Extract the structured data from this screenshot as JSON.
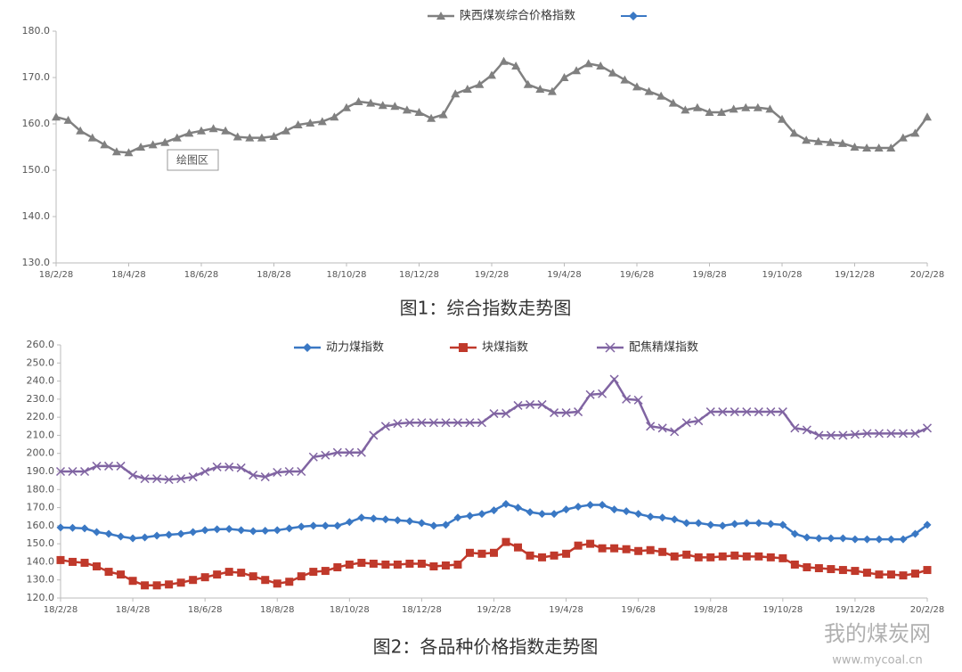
{
  "chart_data": [
    {
      "type": "line",
      "caption": "图1：综合指数走势图",
      "annotation": "绘图区",
      "categories": [
        "18/2/28",
        null,
        null,
        null,
        null,
        null,
        "18/4/28",
        null,
        null,
        null,
        null,
        null,
        "18/6/28",
        null,
        null,
        null,
        null,
        null,
        "18/8/28",
        null,
        null,
        null,
        null,
        null,
        "18/10/28",
        null,
        null,
        null,
        null,
        null,
        "18/12/28",
        null,
        null,
        null,
        null,
        null,
        "19/2/28",
        null,
        null,
        null,
        null,
        null,
        "19/4/28",
        null,
        null,
        null,
        null,
        null,
        "19/6/28",
        null,
        null,
        null,
        null,
        null,
        "19/8/28",
        null,
        null,
        null,
        null,
        null,
        "19/10/28",
        null,
        null,
        null,
        null,
        null,
        "19/12/28",
        null,
        null,
        null,
        null,
        null,
        "20/2/28"
      ],
      "ylim": [
        130,
        180
      ],
      "yticks": [
        {
          "value": 130,
          "label": "130.0"
        },
        {
          "value": 140,
          "label": "140.0"
        },
        {
          "value": 150,
          "label": "150.0"
        },
        {
          "value": 160,
          "label": "160.0"
        },
        {
          "value": 170,
          "label": "170.0"
        },
        {
          "value": 180,
          "label": "180.0"
        }
      ],
      "series": [
        {
          "name": "陕西煤炭综合价格指数",
          "color": "#808080",
          "marker": "triangle",
          "values": [
            161.5,
            160.8,
            158.5,
            157,
            155.5,
            154,
            153.8,
            155,
            155.5,
            156,
            157,
            158,
            158.5,
            159,
            158.5,
            157.2,
            157,
            157,
            157.3,
            158.5,
            159.8,
            160.2,
            160.5,
            161.5,
            163.5,
            164.8,
            164.5,
            164,
            163.8,
            163,
            162.5,
            161.2,
            162,
            166.5,
            167.5,
            168.5,
            170.5,
            173.5,
            172.5,
            168.5,
            167.5,
            167,
            170,
            171.5,
            173,
            172.5,
            171,
            169.5,
            168,
            167,
            166,
            164.5,
            163,
            163.5,
            162.5,
            162.5,
            163.2,
            163.5,
            163.5,
            163.2,
            161,
            158,
            156.5,
            156.2,
            156,
            155.8,
            155,
            154.8,
            154.8,
            154.8,
            157,
            158,
            161.5
          ]
        }
      ]
    },
    {
      "type": "line",
      "caption": "图2：各品种价格指数走势图",
      "categories": [
        "18/2/28",
        null,
        null,
        null,
        null,
        null,
        "18/4/28",
        null,
        null,
        null,
        null,
        null,
        "18/6/28",
        null,
        null,
        null,
        null,
        null,
        "18/8/28",
        null,
        null,
        null,
        null,
        null,
        "18/10/28",
        null,
        null,
        null,
        null,
        null,
        "18/12/28",
        null,
        null,
        null,
        null,
        null,
        "19/2/28",
        null,
        null,
        null,
        null,
        null,
        "19/4/28",
        null,
        null,
        null,
        null,
        null,
        "19/6/28",
        null,
        null,
        null,
        null,
        null,
        "19/8/28",
        null,
        null,
        null,
        null,
        null,
        "19/10/28",
        null,
        null,
        null,
        null,
        null,
        "19/12/28",
        null,
        null,
        null,
        null,
        null,
        "20/2/28"
      ],
      "ylim": [
        120,
        260
      ],
      "yticks": [
        {
          "value": 120,
          "label": "120.0"
        },
        {
          "value": 130,
          "label": "130.0"
        },
        {
          "value": 140,
          "label": "140.0"
        },
        {
          "value": 150,
          "label": "150.0"
        },
        {
          "value": 160,
          "label": "160.0"
        },
        {
          "value": 170,
          "label": "170.0"
        },
        {
          "value": 180,
          "label": "180.0"
        },
        {
          "value": 190,
          "label": "190.0"
        },
        {
          "value": 200,
          "label": "200.0"
        },
        {
          "value": 210,
          "label": "210.0"
        },
        {
          "value": 220,
          "label": "220.0"
        },
        {
          "value": 230,
          "label": "230.0"
        },
        {
          "value": 240,
          "label": "240.0"
        },
        {
          "value": 250,
          "label": "250.0"
        },
        {
          "value": 260,
          "label": "260.0"
        }
      ],
      "series": [
        {
          "name": "动力煤指数",
          "color": "#3a78c4",
          "marker": "diamond",
          "values": [
            159,
            158.8,
            158.5,
            156.5,
            155.5,
            154,
            153,
            153.5,
            154.5,
            155,
            155.5,
            156.5,
            157.5,
            158,
            158.2,
            157.5,
            157,
            157.2,
            157.5,
            158.5,
            159.5,
            160,
            160,
            160,
            162,
            164.5,
            164,
            163.5,
            163,
            162.5,
            161.5,
            160,
            160.5,
            164.5,
            165.5,
            166.5,
            168.5,
            172,
            170,
            167.5,
            166.5,
            166.5,
            169,
            170.5,
            171.5,
            171.5,
            169,
            168,
            166.5,
            165,
            164.5,
            163.5,
            161.5,
            161.5,
            160.5,
            160,
            161,
            161.5,
            161.5,
            161,
            160.5,
            155.5,
            153.5,
            153,
            153,
            153,
            152.5,
            152.5,
            152.5,
            152.5,
            152.5,
            155.5,
            160.5
          ]
        },
        {
          "name": "块煤指数",
          "color": "#c0392b",
          "marker": "square",
          "values": [
            141,
            140,
            139.5,
            137.5,
            134.5,
            133,
            129.5,
            127,
            127,
            127.5,
            128.5,
            130,
            131.5,
            133,
            134.5,
            134,
            132,
            130,
            128,
            129,
            132,
            134.5,
            135,
            137,
            138.5,
            139.5,
            139,
            138.5,
            138.5,
            139,
            139,
            137.5,
            138,
            138.5,
            145,
            144.5,
            145,
            151,
            148,
            143.5,
            142.5,
            143.5,
            144.5,
            149,
            150,
            147.5,
            147.5,
            147,
            146,
            146.5,
            145.5,
            143,
            144,
            142.5,
            142.5,
            143,
            143.5,
            143,
            143,
            142.5,
            142,
            138.5,
            137,
            136.5,
            136,
            135.5,
            135,
            134,
            133,
            133,
            132.5,
            133.5,
            135.5
          ]
        },
        {
          "name": "配焦精煤指数",
          "color": "#8064a2",
          "marker": "x",
          "values": [
            190,
            190,
            190,
            193,
            193,
            193,
            188,
            186,
            186,
            185.5,
            186,
            187,
            190,
            192.5,
            192.5,
            192,
            188,
            187,
            189.5,
            190,
            190,
            198,
            199,
            200.5,
            200.5,
            200.5,
            210,
            215,
            216.5,
            217,
            217,
            217,
            217,
            217,
            217,
            217,
            222,
            222,
            226.5,
            227,
            227,
            222.5,
            222.5,
            223,
            232.5,
            233,
            241,
            230,
            229.5,
            215,
            214,
            212,
            217,
            218,
            223,
            223,
            223,
            223,
            223,
            223,
            223,
            214,
            213,
            210,
            210,
            210,
            210.5,
            211,
            211,
            211,
            211,
            211,
            214
          ]
        }
      ]
    }
  ],
  "watermark": {
    "name": "我的煤炭网",
    "url": "www.mycoal.cn"
  }
}
